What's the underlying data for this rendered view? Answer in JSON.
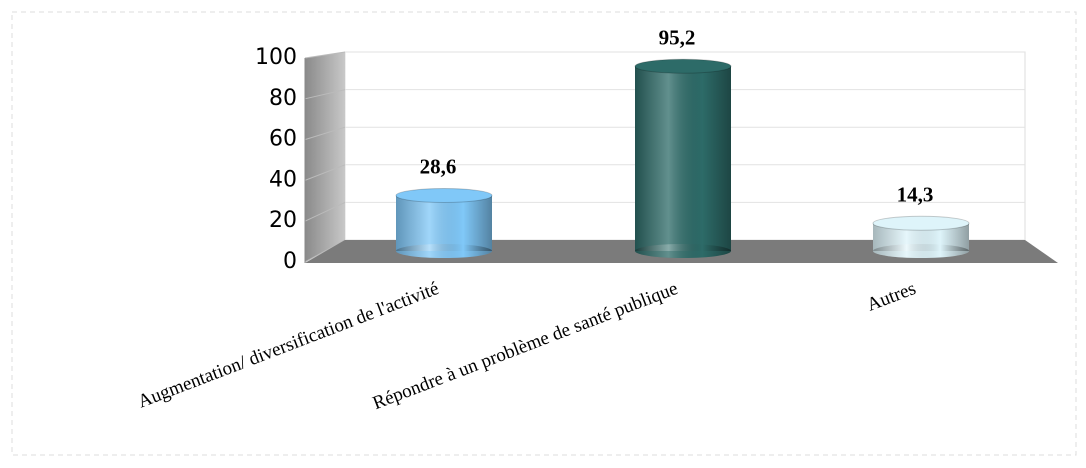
{
  "chart_data": {
    "type": "bar",
    "categories": [
      "Augmentation/ diversification de l'activité",
      "Répondre à un problème de santé publique",
      "Autres"
    ],
    "values": [
      28.6,
      95.2,
      14.3
    ],
    "value_labels": [
      "28,6",
      "95,2",
      "14,3"
    ],
    "colors": [
      "#80c8f8",
      "#2d6b68",
      "#def4fa"
    ],
    "ylim": [
      0,
      100
    ],
    "yticks": [
      0,
      20,
      40,
      60,
      80,
      100
    ],
    "grid": true
  }
}
